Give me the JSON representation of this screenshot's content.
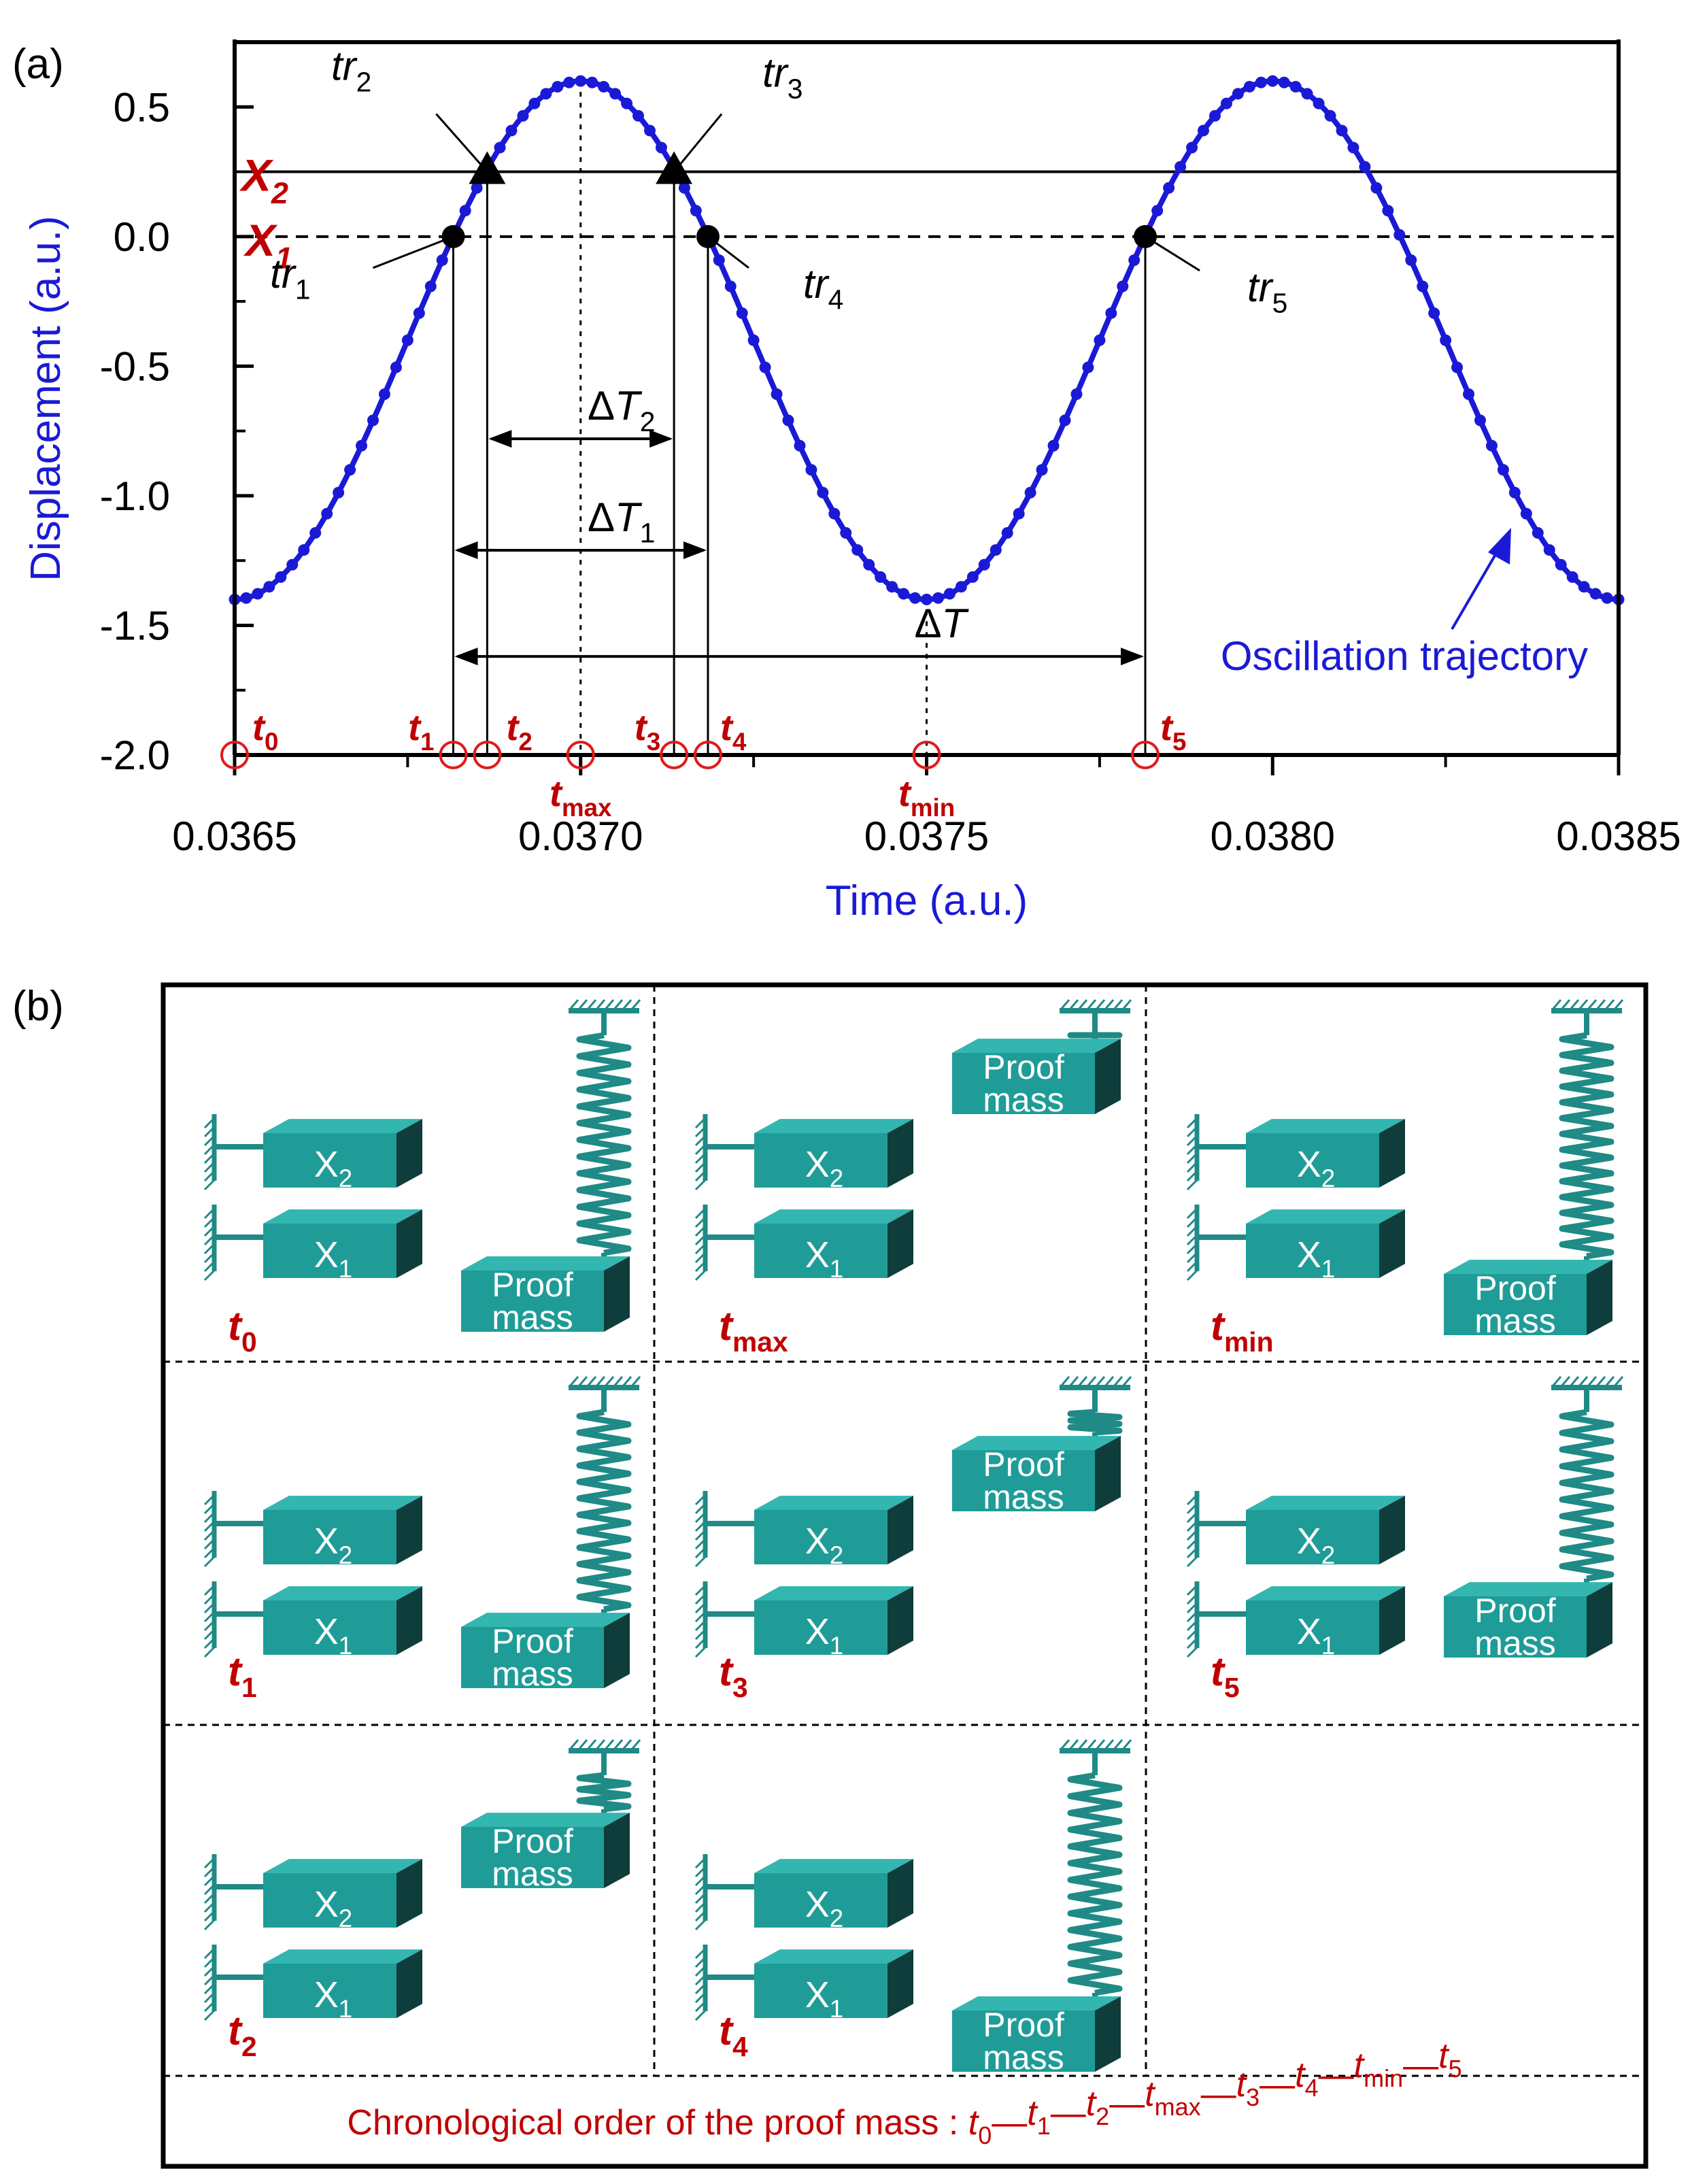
{
  "panel_a_label": "(a)",
  "panel_b_label": "(b)",
  "chart_data": {
    "type": "line",
    "title": "",
    "xlabel": "Time (a.u.)",
    "ylabel": "Displacement (a.u.)",
    "xlim": [
      0.0365,
      0.0385
    ],
    "ylim": [
      -2.0,
      0.75
    ],
    "xticks": [
      0.0365,
      0.037,
      0.0375,
      0.038,
      0.0385
    ],
    "xtick_labels": [
      "0.0365",
      "0.0370",
      "0.0375",
      "0.0380",
      "0.0385"
    ],
    "yticks": [
      0.5,
      0.0,
      -0.5,
      -1.0,
      -1.5,
      -2.0
    ],
    "ytick_labels": [
      "0.5",
      "0.0",
      "-0.5",
      "-1.0",
      "-1.5",
      "-2.0"
    ],
    "series": [
      {
        "name": "Oscillation trajectory",
        "color": "#1a1ad6",
        "model": {
          "center": -0.4,
          "amplitude": 1.0,
          "period": 0.001,
          "t_peak": 0.037
        },
        "x_start": 0.0365,
        "x_end": 0.0385,
        "marker_spacing": 1.67e-05
      }
    ],
    "thresholds": [
      {
        "name": "X2",
        "value": 0.25,
        "style": "solid"
      },
      {
        "name": "X1",
        "value": 0.0,
        "style": "dashed"
      }
    ],
    "threshold_labels": {
      "x2_main": "X",
      "x2_sub": "2",
      "x1_main": "X",
      "x1_sub": "1"
    },
    "trigger_points": [
      {
        "name": "tr1",
        "main": "tr",
        "sub": "1",
        "x": 0.036816,
        "y": 0.0,
        "marker": "circle"
      },
      {
        "name": "tr2",
        "main": "tr",
        "sub": "2",
        "x": 0.036865,
        "y": 0.25,
        "marker": "triangle"
      },
      {
        "name": "tr3",
        "main": "tr",
        "sub": "3",
        "x": 0.037135,
        "y": 0.25,
        "marker": "triangle"
      },
      {
        "name": "tr4",
        "main": "tr",
        "sub": "4",
        "x": 0.037184,
        "y": 0.0,
        "marker": "circle"
      },
      {
        "name": "tr5",
        "main": "tr",
        "sub": "5",
        "x": 0.037816,
        "y": 0.0,
        "marker": "circle"
      }
    ],
    "time_markers": [
      {
        "name": "t0",
        "main": "t",
        "sub": "0",
        "x": 0.0365
      },
      {
        "name": "t1",
        "main": "t",
        "sub": "1",
        "x": 0.036816
      },
      {
        "name": "t2",
        "main": "t",
        "sub": "2",
        "x": 0.036865
      },
      {
        "name": "tmax",
        "main": "t",
        "sub": "max",
        "x": 0.037
      },
      {
        "name": "t3",
        "main": "t",
        "sub": "3",
        "x": 0.037135
      },
      {
        "name": "t4",
        "main": "t",
        "sub": "4",
        "x": 0.037184
      },
      {
        "name": "tmin",
        "main": "t",
        "sub": "min",
        "x": 0.0375
      },
      {
        "name": "t5",
        "main": "t",
        "sub": "5",
        "x": 0.037816
      }
    ],
    "intervals": [
      {
        "name": "ΔT2",
        "delta": "Δ",
        "main": "T",
        "sub": "2",
        "from": 0.036865,
        "to": 0.037135,
        "y": -0.78
      },
      {
        "name": "ΔT1",
        "delta": "Δ",
        "main": "T",
        "sub": "1",
        "from": 0.036816,
        "to": 0.037184,
        "y": -1.21
      },
      {
        "name": "ΔT",
        "delta": "Δ",
        "main": "T",
        "sub": "",
        "from": 0.036816,
        "to": 0.037816,
        "y": -1.62
      }
    ],
    "annotation": "Oscillation trajectory"
  },
  "panel_b": {
    "box_x2": {
      "main": "X",
      "sub": "2"
    },
    "box_x1": {
      "main": "X",
      "sub": "1"
    },
    "proof_line1": "Proof",
    "proof_line2": "mass",
    "cells": [
      {
        "name": "t0",
        "main": "t",
        "sub": "0"
      },
      {
        "name": "tmax",
        "main": "t",
        "sub": "max"
      },
      {
        "name": "tmin",
        "main": "t",
        "sub": "min"
      },
      {
        "name": "t1",
        "main": "t",
        "sub": "1"
      },
      {
        "name": "t3",
        "main": "t",
        "sub": "3"
      },
      {
        "name": "t5",
        "main": "t",
        "sub": "5"
      },
      {
        "name": "t2",
        "main": "t",
        "sub": "2"
      },
      {
        "name": "t4",
        "main": "t",
        "sub": "4"
      }
    ],
    "chronology_prefix": "Chronological order of the proof mass : ",
    "chronology_sequence": [
      {
        "main": "t",
        "sub": "0"
      },
      {
        "main": "t",
        "sub": "1"
      },
      {
        "main": "t",
        "sub": "2"
      },
      {
        "main": "t",
        "sub": "max"
      },
      {
        "main": "t",
        "sub": "3"
      },
      {
        "main": "t",
        "sub": "4"
      },
      {
        "main": "t",
        "sub": "min"
      },
      {
        "main": "t",
        "sub": "5"
      }
    ],
    "chronology_separator": "—",
    "colors": {
      "teal_top": "#33b5b0",
      "teal_front": "#1f9c97",
      "teal_dark": "#0f3d3b",
      "spring": "#1f8a86",
      "label_red": "#c00000"
    }
  }
}
